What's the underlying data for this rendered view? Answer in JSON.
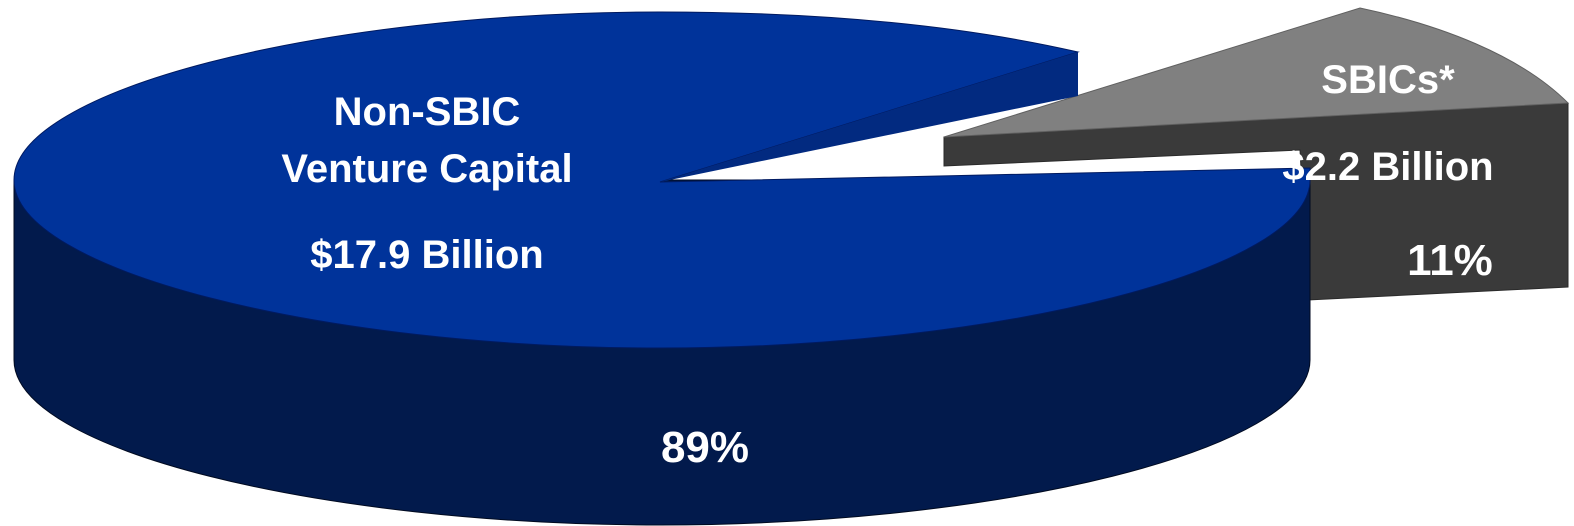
{
  "chart_data": {
    "type": "pie",
    "style": "3d-exploded",
    "legend": "none",
    "slices": [
      {
        "label_lines": [
          "Non-SBIC",
          "Venture Capital"
        ],
        "amount": "$17.9 Billion",
        "value": 17.9,
        "percent": 89,
        "percent_label": "89%",
        "top_color": "#00339a",
        "side_color": "#021a4c"
      },
      {
        "label_lines": [
          "SBICs*"
        ],
        "amount": "$2.2 Billion",
        "value": 2.2,
        "percent": 11,
        "percent_label": "11%",
        "top_color": "#808080",
        "side_color": "#3a3a3a"
      }
    ]
  }
}
